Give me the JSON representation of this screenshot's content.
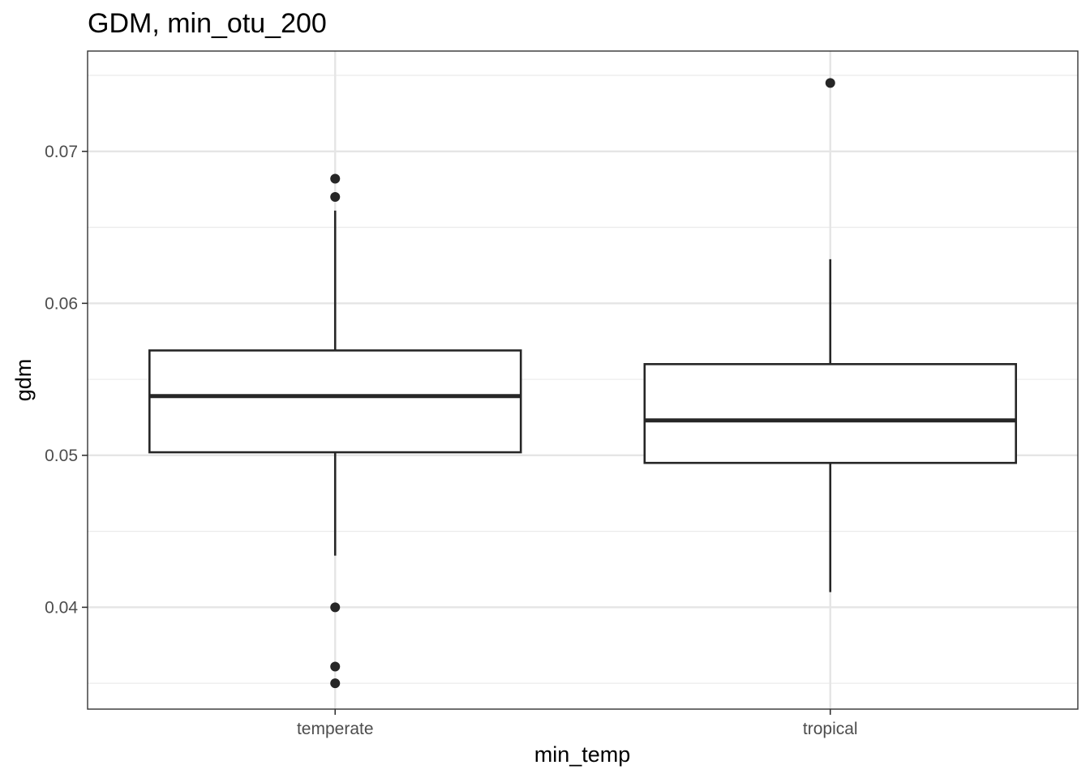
{
  "chart_data": {
    "type": "boxplot",
    "title": "GDM, min_otu_200",
    "xlabel": "min_temp",
    "ylabel": "gdm",
    "categories": [
      "temperate",
      "tropical"
    ],
    "ylim": [
      0.0333,
      0.0766
    ],
    "yticks": [
      0.04,
      0.05,
      0.06,
      0.07
    ],
    "ytick_labels": [
      "0.04",
      "0.05",
      "0.06",
      "0.07"
    ],
    "grid": true,
    "boxes": [
      {
        "category": "temperate",
        "whisker_low": 0.0434,
        "q1": 0.0502,
        "median": 0.0539,
        "q3": 0.0569,
        "whisker_high": 0.0661,
        "outliers": [
          0.0682,
          0.067,
          0.04,
          0.0361,
          0.035
        ]
      },
      {
        "category": "tropical",
        "whisker_low": 0.041,
        "q1": 0.0495,
        "median": 0.0523,
        "q3": 0.056,
        "whisker_high": 0.0629,
        "outliers": [
          0.0745
        ]
      }
    ]
  }
}
